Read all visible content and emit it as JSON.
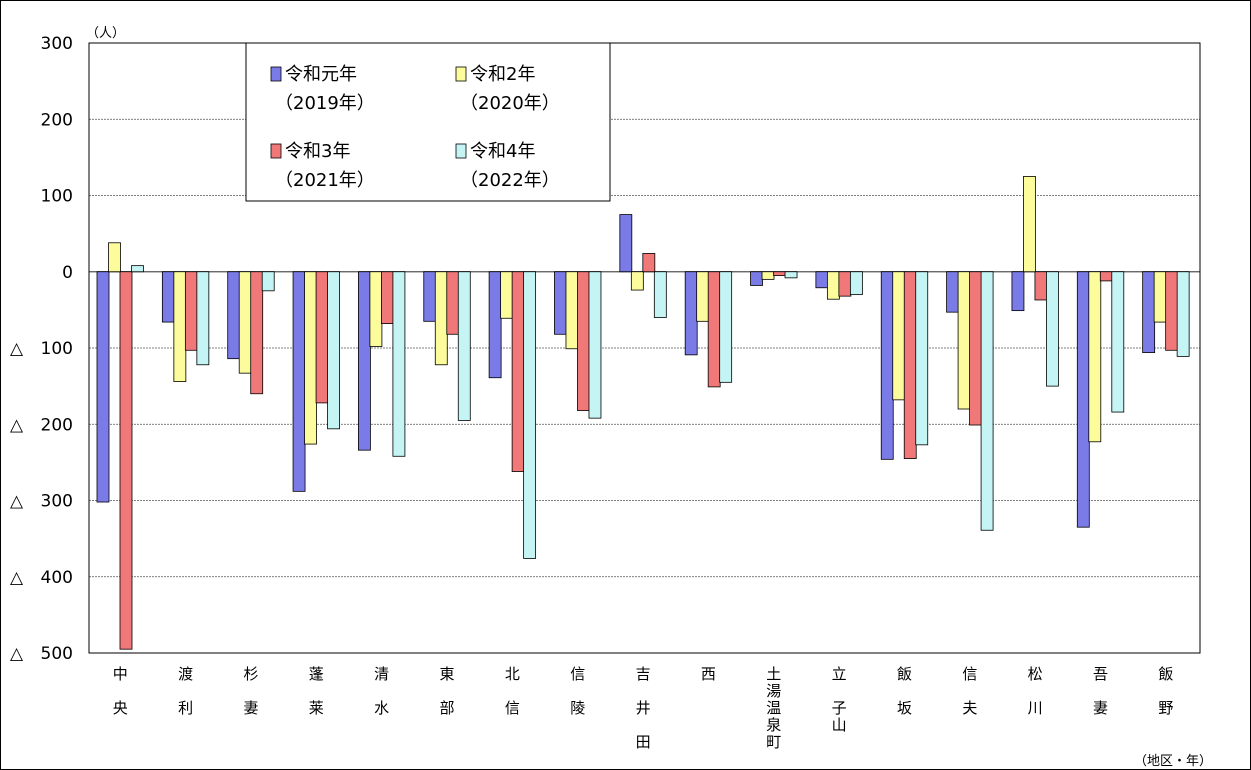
{
  "chart_data": {
    "type": "bar",
    "unit_label": "（人）",
    "x_axis_note": "（地区・年）",
    "ylim": [
      -500,
      300
    ],
    "yticks": [
      300,
      200,
      100,
      0,
      -100,
      -200,
      -300,
      -400,
      -500
    ],
    "ytick_labels": [
      "300",
      "200",
      "100",
      "0",
      "△ 100",
      "△ 200",
      "△ 300",
      "△ 400",
      "△ 500"
    ],
    "grid": true,
    "legend_position": "top-left",
    "categories": [
      "中央",
      "渡利",
      "杉妻",
      "蓬莱",
      "清水",
      "東部",
      "北信",
      "信陵",
      "吉井田",
      "西",
      "土湯温泉町",
      "立子山",
      "飯坂",
      "信夫",
      "松川",
      "吾妻",
      "飯野"
    ],
    "category_labels": [
      [
        "中",
        "",
        "央"
      ],
      [
        "渡",
        "",
        "利"
      ],
      [
        "杉",
        "",
        "妻"
      ],
      [
        "蓬",
        "",
        "莱"
      ],
      [
        "清",
        "",
        "水"
      ],
      [
        "東",
        "",
        "部"
      ],
      [
        "北",
        "",
        "信"
      ],
      [
        "信",
        "",
        "陵"
      ],
      [
        "吉",
        "",
        "井",
        "",
        "田"
      ],
      [
        "西"
      ],
      [
        "土",
        "湯",
        "温",
        "泉",
        "町"
      ],
      [
        "立",
        "",
        "子",
        "山"
      ],
      [
        "飯",
        "",
        "坂"
      ],
      [
        "信",
        "",
        "夫"
      ],
      [
        "松",
        "",
        "川"
      ],
      [
        "吾",
        "",
        "妻"
      ],
      [
        "飯",
        "",
        "野"
      ]
    ],
    "series": [
      {
        "name": "令和元年",
        "name_sub": "（2019年）",
        "color": "#7b7be8",
        "values": [
          -302,
          -66,
          -114,
          -288,
          -234,
          -65,
          -139,
          -82,
          75,
          -109,
          -18,
          -21,
          -246,
          -53,
          -51,
          -335,
          -106
        ]
      },
      {
        "name": "令和2年",
        "name_sub": "（2020年）",
        "color": "#fcfc9c",
        "values": [
          38,
          -144,
          -133,
          -226,
          -98,
          -122,
          -61,
          -101,
          -24,
          -65,
          -10,
          -36,
          -168,
          -180,
          125,
          -223,
          -66
        ]
      },
      {
        "name": "令和3年",
        "name_sub": "（2021年）",
        "color": "#f07878",
        "values": [
          -495,
          -103,
          -160,
          -172,
          -68,
          -82,
          -262,
          -182,
          24,
          -151,
          -5,
          -32,
          -245,
          -201,
          -37,
          -12,
          -103
        ]
      },
      {
        "name": "令和4年",
        "name_sub": "（2022年）",
        "color": "#c4f4f4",
        "values": [
          8,
          -122,
          -25,
          -206,
          -242,
          -195,
          -376,
          -192,
          -60,
          -145,
          -8,
          -30,
          -227,
          -339,
          -150,
          -184,
          -111
        ]
      }
    ]
  }
}
